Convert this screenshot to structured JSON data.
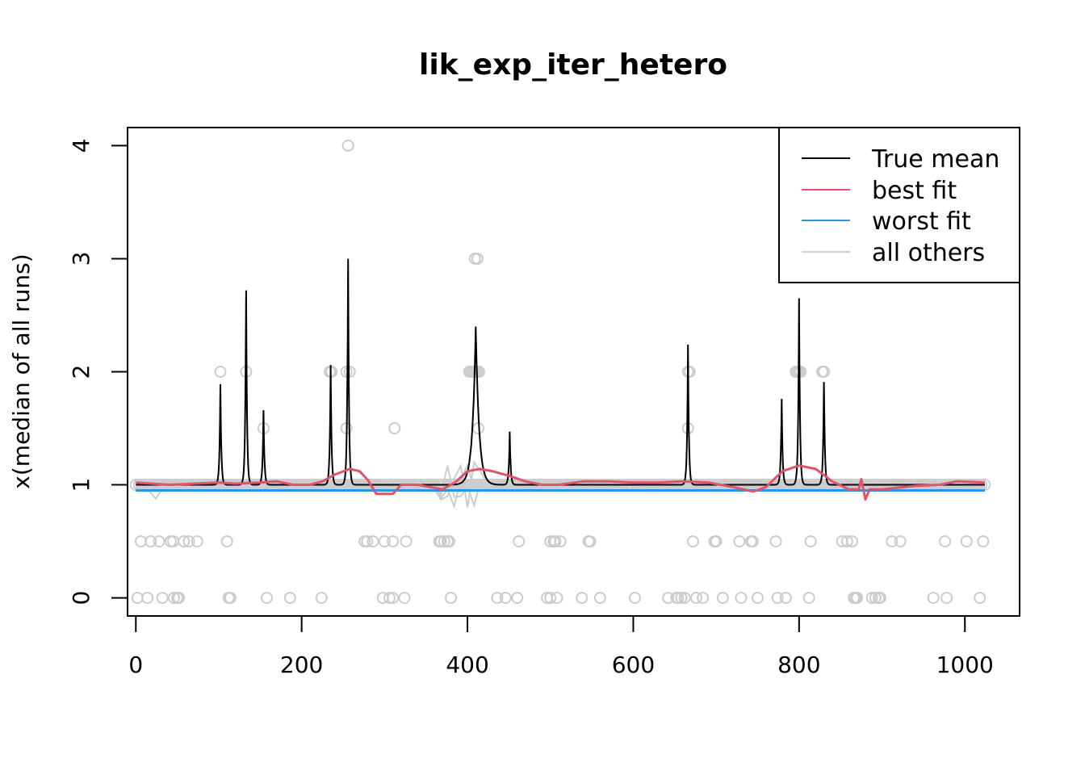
{
  "chart_data": {
    "type": "line",
    "title": "lik_exp_iter_hetero",
    "xlabel": "",
    "ylabel": "x(median of all runs)",
    "xlim": [
      -10,
      1066
    ],
    "ylim": [
      -0.16,
      4.16
    ],
    "xticks": [
      0,
      200,
      400,
      600,
      800,
      1000
    ],
    "yticks": [
      0,
      1,
      2,
      3,
      4
    ],
    "x_tick_labels": [
      "0",
      "200",
      "400",
      "600",
      "800",
      "1000"
    ],
    "y_tick_labels": [
      "0",
      "1",
      "2",
      "3",
      "4"
    ],
    "grid": false,
    "legend_position": "top-right",
    "colors": {
      "true_mean": "#000000",
      "best_fit": "#DF536B",
      "worst_fit": "#2297E6",
      "others": "#CCCCCC"
    },
    "legend": [
      {
        "key": "true_mean",
        "label": "True mean"
      },
      {
        "key": "best_fit",
        "label": "best fit"
      },
      {
        "key": "worst_fit",
        "label": "worst fit"
      },
      {
        "key": "others",
        "label": "all others"
      }
    ],
    "true_mean": {
      "baseline": 1.0,
      "peaks": [
        {
          "x": 102,
          "height": 1.89
        },
        {
          "x": 133,
          "height": 2.72
        },
        {
          "x": 154,
          "height": 1.66
        },
        {
          "x": 235,
          "height": 2.06
        },
        {
          "x": 256,
          "height": 3.0
        },
        {
          "x": 410,
          "height": 2.4
        },
        {
          "x": 451,
          "height": 1.47
        },
        {
          "x": 666,
          "height": 2.24
        },
        {
          "x": 779,
          "height": 1.76
        },
        {
          "x": 800,
          "height": 2.65
        },
        {
          "x": 830,
          "height": 1.91
        }
      ]
    },
    "best_fit": [
      [
        0,
        1.02
      ],
      [
        20,
        1.01
      ],
      [
        40,
        1.0
      ],
      [
        70,
        1.01
      ],
      [
        100,
        1.02
      ],
      [
        120,
        1.01
      ],
      [
        150,
        1.02
      ],
      [
        170,
        1.03
      ],
      [
        190,
        1.0
      ],
      [
        210,
        1.0
      ],
      [
        225,
        1.03
      ],
      [
        240,
        1.09
      ],
      [
        258,
        1.14
      ],
      [
        270,
        1.12
      ],
      [
        280,
        1.04
      ],
      [
        290,
        0.92
      ],
      [
        310,
        0.92
      ],
      [
        320,
        1.0
      ],
      [
        340,
        1.0
      ],
      [
        355,
        0.98
      ],
      [
        370,
        0.96
      ],
      [
        385,
        1.02
      ],
      [
        400,
        1.12
      ],
      [
        415,
        1.14
      ],
      [
        430,
        1.12
      ],
      [
        450,
        1.08
      ],
      [
        470,
        1.03
      ],
      [
        490,
        1.0
      ],
      [
        510,
        1.0
      ],
      [
        540,
        1.03
      ],
      [
        570,
        1.03
      ],
      [
        600,
        1.02
      ],
      [
        630,
        1.02
      ],
      [
        660,
        1.03
      ],
      [
        690,
        1.02
      ],
      [
        720,
        0.98
      ],
      [
        745,
        0.94
      ],
      [
        760,
        0.98
      ],
      [
        780,
        1.12
      ],
      [
        800,
        1.17
      ],
      [
        820,
        1.14
      ],
      [
        840,
        1.03
      ],
      [
        860,
        0.96
      ],
      [
        872,
        0.96
      ],
      [
        875,
        1.05
      ],
      [
        880,
        0.87
      ],
      [
        885,
        0.96
      ],
      [
        900,
        0.96
      ],
      [
        940,
        0.99
      ],
      [
        970,
        1.0
      ],
      [
        990,
        1.03
      ],
      [
        1024,
        1.02
      ]
    ],
    "worst_fit": [
      [
        0,
        0.95
      ],
      [
        1024,
        0.95
      ]
    ],
    "points_at_4": [
      256
    ],
    "points_at_3": [
      409,
      412
    ],
    "points_at_2": [
      102,
      133,
      234,
      236,
      254,
      258,
      402,
      404,
      406,
      408,
      410,
      412,
      414,
      666,
      668,
      796,
      798,
      800,
      802,
      828,
      830
    ],
    "points_at_1_5": [
      154,
      254,
      312,
      413,
      666
    ],
    "points_at_0_5": [
      6,
      18,
      28,
      42,
      45,
      58,
      64,
      74,
      110,
      276,
      279,
      286,
      300,
      310,
      326,
      366,
      368,
      372,
      376,
      378,
      462,
      500,
      504,
      506,
      512,
      546,
      548,
      672,
      698,
      700,
      728,
      742,
      744,
      772,
      814,
      852,
      858,
      864,
      912,
      922,
      976,
      1002,
      1022
    ],
    "points_at_0": [
      2,
      14,
      32,
      46,
      50,
      52,
      112,
      114,
      158,
      186,
      224,
      298,
      306,
      310,
      324,
      380,
      436,
      446,
      460,
      496,
      500,
      508,
      538,
      560,
      602,
      642,
      652,
      654,
      658,
      662,
      676,
      684,
      708,
      730,
      750,
      774,
      784,
      812,
      866,
      868,
      870,
      888,
      892,
      896,
      898,
      962,
      978,
      1018
    ],
    "points_at_1_range": [
      0,
      1024
    ]
  }
}
